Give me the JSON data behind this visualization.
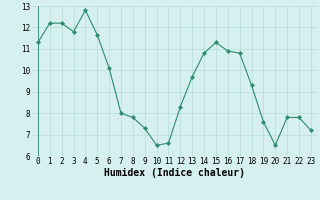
{
  "x": [
    0,
    1,
    2,
    3,
    4,
    5,
    6,
    7,
    8,
    9,
    10,
    11,
    12,
    13,
    14,
    15,
    16,
    17,
    18,
    19,
    20,
    21,
    22,
    23
  ],
  "y": [
    11.3,
    12.2,
    12.2,
    11.8,
    12.8,
    11.65,
    10.1,
    8.0,
    7.8,
    7.3,
    6.5,
    6.6,
    8.3,
    9.7,
    10.8,
    11.3,
    10.9,
    10.8,
    9.3,
    7.6,
    6.5,
    7.8,
    7.8,
    7.2
  ],
  "line_color": "#2e8b6e",
  "marker": "D",
  "marker_size": 2,
  "bg_color": "#d5f0ee",
  "grid_color": "#b8ddd8",
  "xlabel": "Humidex (Indice chaleur)",
  "xlabel_fontsize": 7,
  "xlim": [
    -0.5,
    23.5
  ],
  "ylim": [
    6,
    13
  ],
  "yticks": [
    6,
    7,
    8,
    9,
    10,
    11,
    12,
    13
  ],
  "xticks": [
    0,
    1,
    2,
    3,
    4,
    5,
    6,
    7,
    8,
    9,
    10,
    11,
    12,
    13,
    14,
    15,
    16,
    17,
    18,
    19,
    20,
    21,
    22,
    23
  ],
  "tick_fontsize": 5.5,
  "linewidth": 0.8
}
